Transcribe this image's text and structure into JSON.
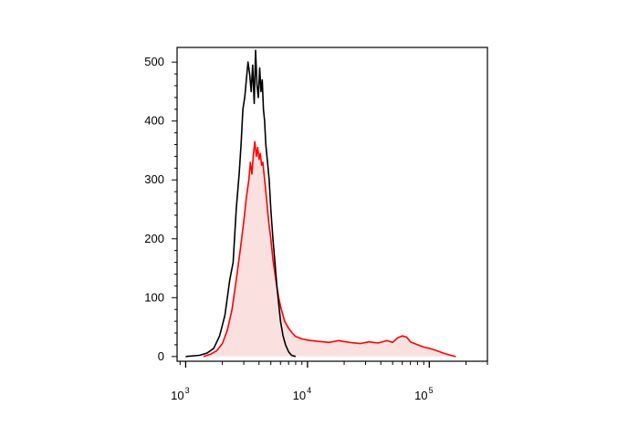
{
  "chart_data": {
    "type": "area",
    "title": "",
    "xlabel": "",
    "ylabel": "",
    "x_scale": "log",
    "xlim": [
      850,
      300000
    ],
    "ylim": [
      -8,
      525
    ],
    "grid": false,
    "legend": "none",
    "x_ticks": [
      {
        "value": 1000,
        "base": "10",
        "exp": "3"
      },
      {
        "value": 10000,
        "base": "10",
        "exp": "4"
      },
      {
        "value": 100000,
        "base": "10",
        "exp": "5"
      }
    ],
    "y_ticks": [
      {
        "value": 0,
        "label": "0"
      },
      {
        "value": 100,
        "label": "100"
      },
      {
        "value": 200,
        "label": "200"
      },
      {
        "value": 300,
        "label": "300"
      },
      {
        "value": 400,
        "label": "400"
      },
      {
        "value": 500,
        "label": "500"
      }
    ],
    "series": [
      {
        "color": "#000000",
        "fill": "none",
        "points": [
          [
            1000,
            0
          ],
          [
            1300,
            2
          ],
          [
            1500,
            6
          ],
          [
            1700,
            14
          ],
          [
            1900,
            35
          ],
          [
            2100,
            70
          ],
          [
            2300,
            130
          ],
          [
            2450,
            160
          ],
          [
            2600,
            250
          ],
          [
            2750,
            310
          ],
          [
            2850,
            360
          ],
          [
            2950,
            420
          ],
          [
            3050,
            440
          ],
          [
            3150,
            470
          ],
          [
            3250,
            500
          ],
          [
            3350,
            480
          ],
          [
            3450,
            450
          ],
          [
            3550,
            495
          ],
          [
            3650,
            430
          ],
          [
            3750,
            520
          ],
          [
            3850,
            460
          ],
          [
            3950,
            440
          ],
          [
            4050,
            490
          ],
          [
            4150,
            450
          ],
          [
            4250,
            470
          ],
          [
            4350,
            420
          ],
          [
            4450,
            400
          ],
          [
            4550,
            360
          ],
          [
            4700,
            330
          ],
          [
            4850,
            300
          ],
          [
            5000,
            250
          ],
          [
            5200,
            200
          ],
          [
            5400,
            160
          ],
          [
            5600,
            120
          ],
          [
            5800,
            90
          ],
          [
            6000,
            60
          ],
          [
            6300,
            35
          ],
          [
            6600,
            20
          ],
          [
            7000,
            8
          ],
          [
            7400,
            2
          ],
          [
            8000,
            0
          ]
        ]
      },
      {
        "color": "#ff0000",
        "fill": "#fbe0e0",
        "points": [
          [
            1400,
            0
          ],
          [
            1600,
            4
          ],
          [
            1800,
            10
          ],
          [
            2000,
            22
          ],
          [
            2200,
            45
          ],
          [
            2400,
            80
          ],
          [
            2600,
            130
          ],
          [
            2800,
            180
          ],
          [
            3000,
            230
          ],
          [
            3150,
            270
          ],
          [
            3300,
            300
          ],
          [
            3400,
            330
          ],
          [
            3500,
            310
          ],
          [
            3600,
            345
          ],
          [
            3700,
            365
          ],
          [
            3800,
            340
          ],
          [
            3900,
            355
          ],
          [
            4000,
            335
          ],
          [
            4100,
            345
          ],
          [
            4200,
            325
          ],
          [
            4300,
            330
          ],
          [
            4450,
            300
          ],
          [
            4600,
            270
          ],
          [
            4800,
            230
          ],
          [
            5000,
            200
          ],
          [
            5200,
            165
          ],
          [
            5500,
            130
          ],
          [
            5800,
            100
          ],
          [
            6100,
            80
          ],
          [
            6500,
            60
          ],
          [
            7000,
            48
          ],
          [
            7500,
            40
          ],
          [
            8000,
            34
          ],
          [
            9000,
            30
          ],
          [
            10000,
            28
          ],
          [
            12000,
            26
          ],
          [
            15000,
            24
          ],
          [
            18000,
            27
          ],
          [
            22000,
            24
          ],
          [
            27000,
            22
          ],
          [
            32000,
            25
          ],
          [
            38000,
            23
          ],
          [
            45000,
            27
          ],
          [
            50000,
            24
          ],
          [
            55000,
            32
          ],
          [
            60000,
            35
          ],
          [
            65000,
            33
          ],
          [
            70000,
            25
          ],
          [
            80000,
            20
          ],
          [
            90000,
            16
          ],
          [
            100000,
            14
          ],
          [
            115000,
            10
          ],
          [
            130000,
            6
          ],
          [
            150000,
            2
          ],
          [
            165000,
            0
          ]
        ]
      }
    ]
  }
}
